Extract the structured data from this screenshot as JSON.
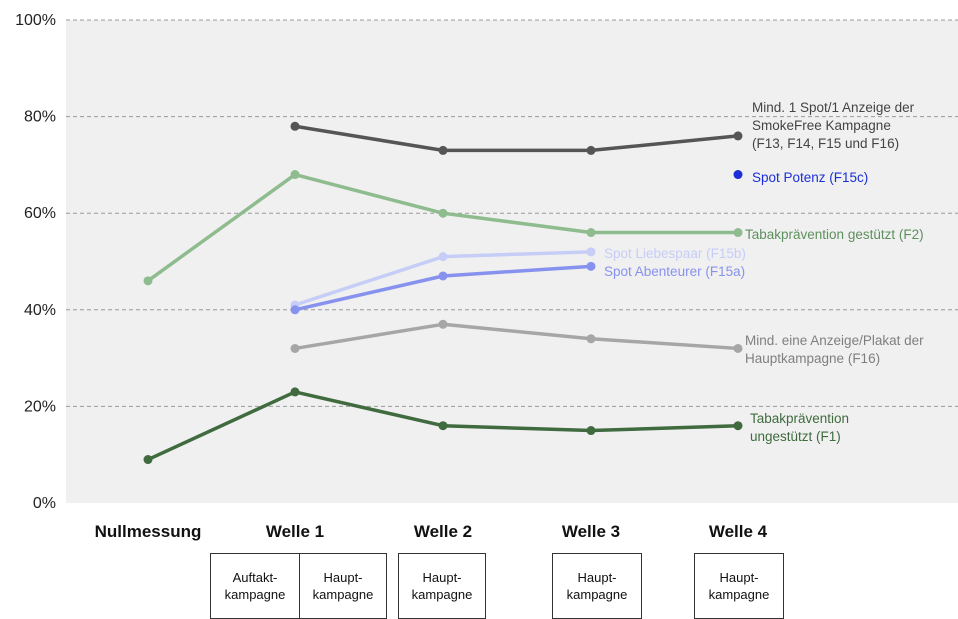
{
  "chart_data": {
    "type": "line",
    "categories": [
      "Nullmessung",
      "Welle 1",
      "Welle 2",
      "Welle 3",
      "Welle 4"
    ],
    "ylim": [
      0,
      100
    ],
    "yticks": [
      "0%",
      "20%",
      "40%",
      "60%",
      "80%",
      "100%"
    ],
    "grid": "dashed horizontal",
    "series": [
      {
        "name": "Mind. 1 Spot/1 Anzeige der SmokeFree Kampagne (F13, F14, F15 und F16)",
        "label_lines": [
          "Mind. 1 Spot/1 Anzeige der",
          "SmokeFree Kampagne",
          "(F13, F14, F15 und F16)"
        ],
        "color": "#555555",
        "values": [
          null,
          78,
          73,
          73,
          76
        ]
      },
      {
        "name": "Spot Potenz (F15c)",
        "label_lines": [
          "Spot Potenz (F15c)"
        ],
        "color": "#1a2fd6",
        "values": [
          null,
          null,
          null,
          null,
          68
        ]
      },
      {
        "name": "Tabakprävention gestützt (F2)",
        "label_lines": [
          "Tabakprävention gestützt (F2)"
        ],
        "color": "#8fbc8f",
        "values": [
          46,
          68,
          60,
          56,
          56
        ]
      },
      {
        "name": "Spot Liebespaar (F15b)",
        "label_lines": [
          "Spot Liebespaar (F15b)"
        ],
        "color": "#c6cdf7",
        "values": [
          null,
          41,
          51,
          52,
          null
        ]
      },
      {
        "name": "Spot Abenteurer (F15a)",
        "label_lines": [
          "Spot Abenteurer (F15a)"
        ],
        "color": "#8792ee",
        "values": [
          null,
          40,
          47,
          49,
          null
        ]
      },
      {
        "name": "Mind. eine Anzeige/Plakat der Hauptkampagne (F16)",
        "label_lines": [
          "Mind. eine Anzeige/Plakat der",
          "Hauptkampagne (F16)"
        ],
        "color": "#a6a6a6",
        "values": [
          null,
          32,
          37,
          34,
          32
        ]
      },
      {
        "name": "Tabakprävention ungestützt (F1)",
        "label_lines": [
          "Tabakprävention",
          "ungestützt (F1)"
        ],
        "color": "#3f6b3f",
        "values": [
          9,
          23,
          16,
          15,
          16
        ]
      }
    ]
  },
  "phases": [
    {
      "wave": "Welle 1",
      "lines": [
        "Auftakt-",
        "kampagne"
      ],
      "fill": "#f2f2f2"
    },
    {
      "wave": "Welle 1",
      "lines": [
        "Haupt-",
        "kampagne"
      ],
      "fill": "#bfbfbf"
    },
    {
      "wave": "Welle 2",
      "lines": [
        "Haupt-",
        "kampagne"
      ],
      "fill": "#bfbfbf"
    },
    {
      "wave": "Welle 3",
      "lines": [
        "Haupt-",
        "kampagne"
      ],
      "fill": "#bfbfbf"
    },
    {
      "wave": "Welle 4",
      "lines": [
        "Haupt-",
        "kampagne"
      ],
      "fill": "#bfbfbf"
    }
  ]
}
